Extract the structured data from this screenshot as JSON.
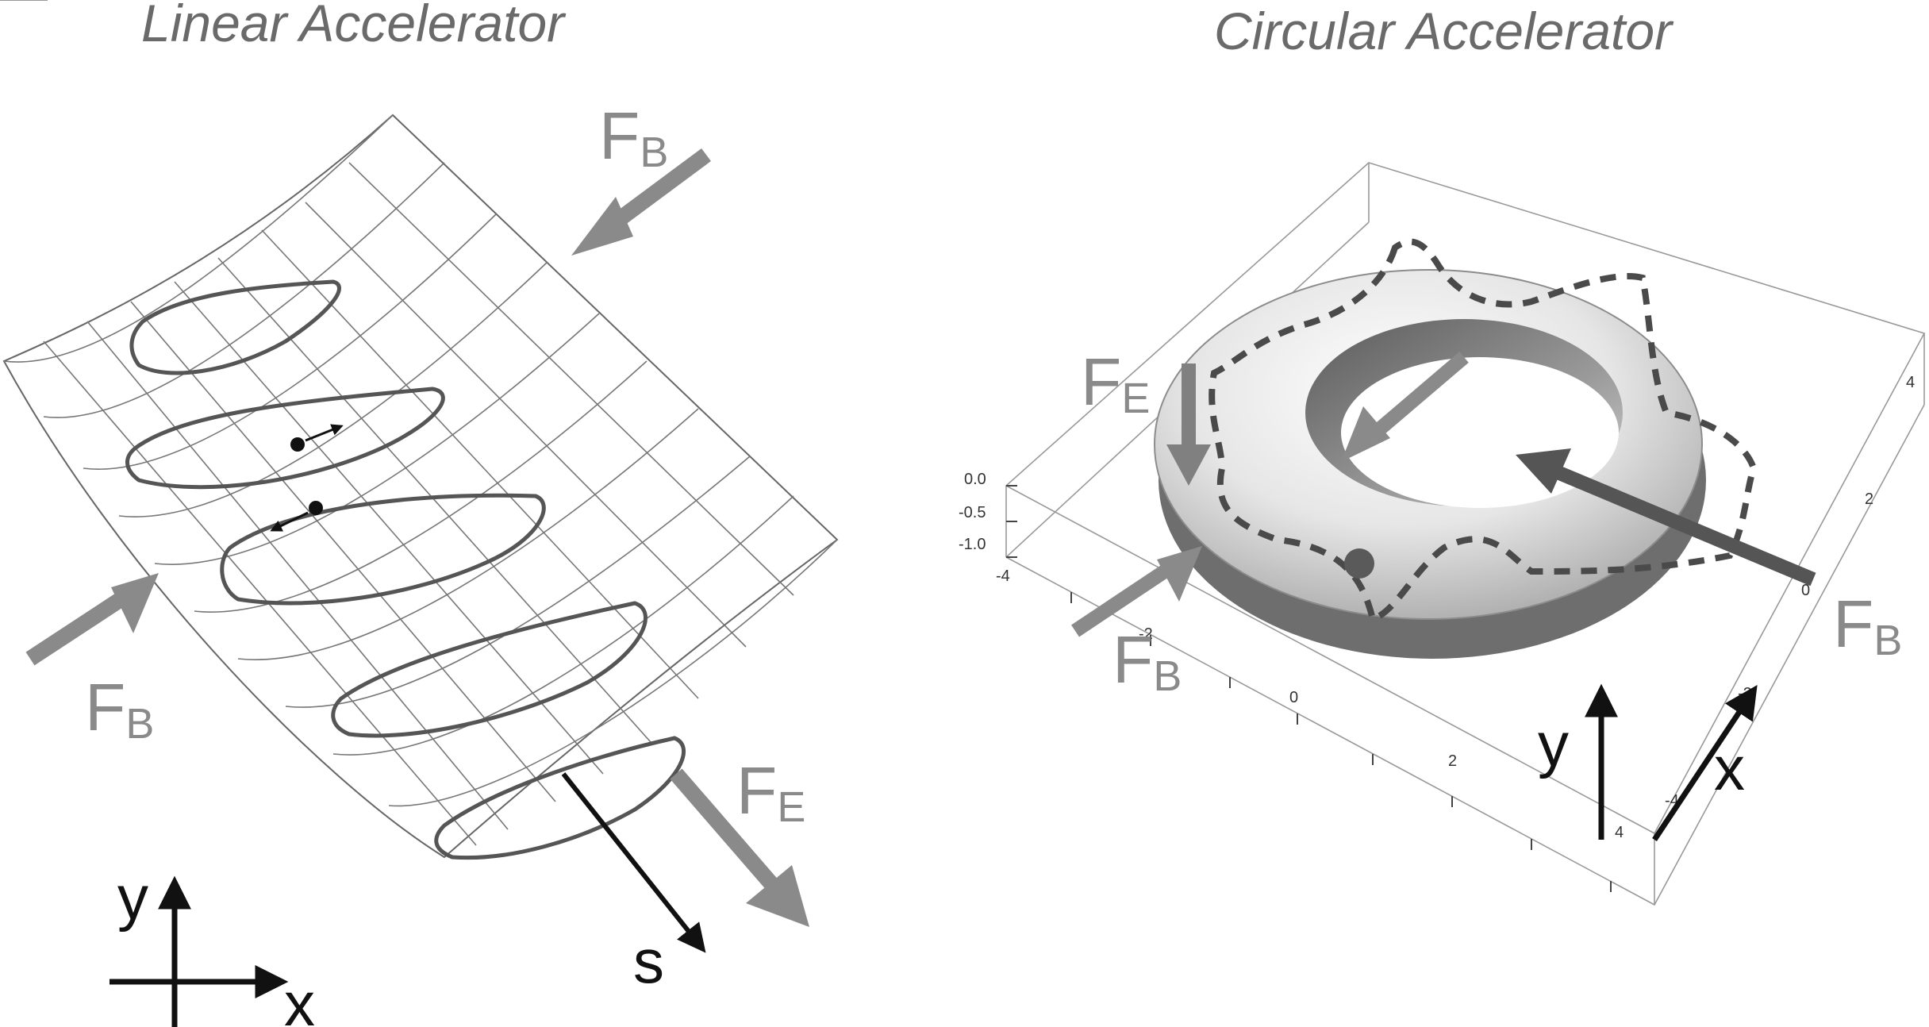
{
  "colors": {
    "force_arrow": "#8a8a8a",
    "axis": "#111111",
    "torus_dark": "#4f4f4f",
    "dash": "#4a4a4a"
  },
  "linear": {
    "title": "Linear Accelerator",
    "fb_top": {
      "main": "F",
      "sub": "B"
    },
    "fb_left": {
      "main": "F",
      "sub": "B"
    },
    "fe": {
      "main": "F",
      "sub": "E"
    },
    "axis_y": "y",
    "axis_x": "x",
    "axis_s": "s"
  },
  "circular": {
    "title": "Circular Accelerator",
    "fe": {
      "main": "F",
      "sub": "E"
    },
    "fb_left": {
      "main": "F",
      "sub": "B"
    },
    "fb_right": {
      "main": "F",
      "sub": "B"
    },
    "axis_y": "y",
    "axis_x": "x",
    "z_ticks": [
      "0.0",
      "-0.5",
      "-1.0"
    ],
    "front_ticks": [
      "-4",
      "-2",
      "0",
      "2",
      "4"
    ],
    "right_ticks": [
      "4",
      "2",
      "0",
      "-2",
      "-4"
    ]
  }
}
